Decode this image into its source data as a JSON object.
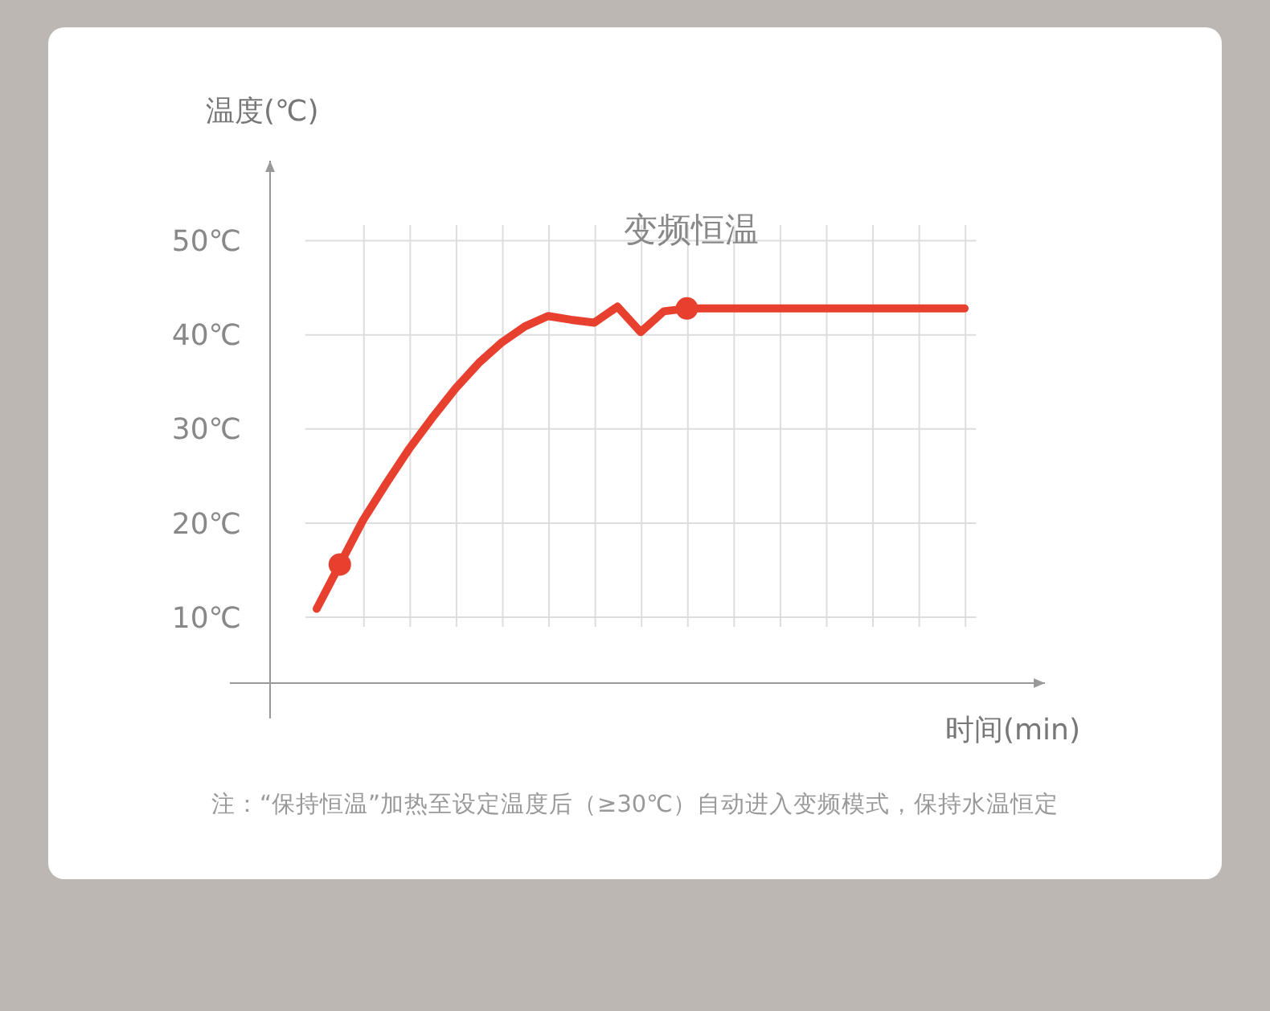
{
  "chart_data": {
    "type": "line",
    "title": "变频恒温",
    "xlabel": "时间(min)",
    "ylabel": "温度(℃)",
    "categories": [
      null,
      null,
      null,
      null,
      null,
      null,
      null,
      null,
      null,
      null,
      null,
      null,
      null,
      null,
      null,
      null,
      null,
      null,
      null,
      null,
      null,
      null,
      null,
      null,
      null,
      null,
      null,
      null,
      null
    ],
    "ylim": [
      3,
      58.5
    ],
    "yticks": [
      {
        "value": 10,
        "label": "10℃"
      },
      {
        "value": 20,
        "label": "20℃"
      },
      {
        "value": 30,
        "label": "30℃"
      },
      {
        "value": 40,
        "label": "40℃"
      },
      {
        "value": 50,
        "label": "50℃"
      }
    ],
    "tick_labels": "y",
    "grid": true,
    "line_style": "solid",
    "series": [
      {
        "color": "#e8402e",
        "values": [
          10.9,
          15.6,
          20.3,
          24.2,
          27.9,
          31.2,
          34.3,
          37.0,
          39.2,
          40.9,
          42.0,
          41.6,
          41.3,
          43.0,
          40.3,
          42.5,
          42.8,
          42.8,
          42.8,
          42.8,
          42.8,
          42.8,
          42.8,
          42.8,
          42.8,
          42.8,
          42.8,
          42.8,
          42.8
        ]
      }
    ],
    "annotations": [
      "注：“保持恒温”加热至设定温度后（≥30℃）自动进入变频模式，保持水温恒定"
    ]
  }
}
